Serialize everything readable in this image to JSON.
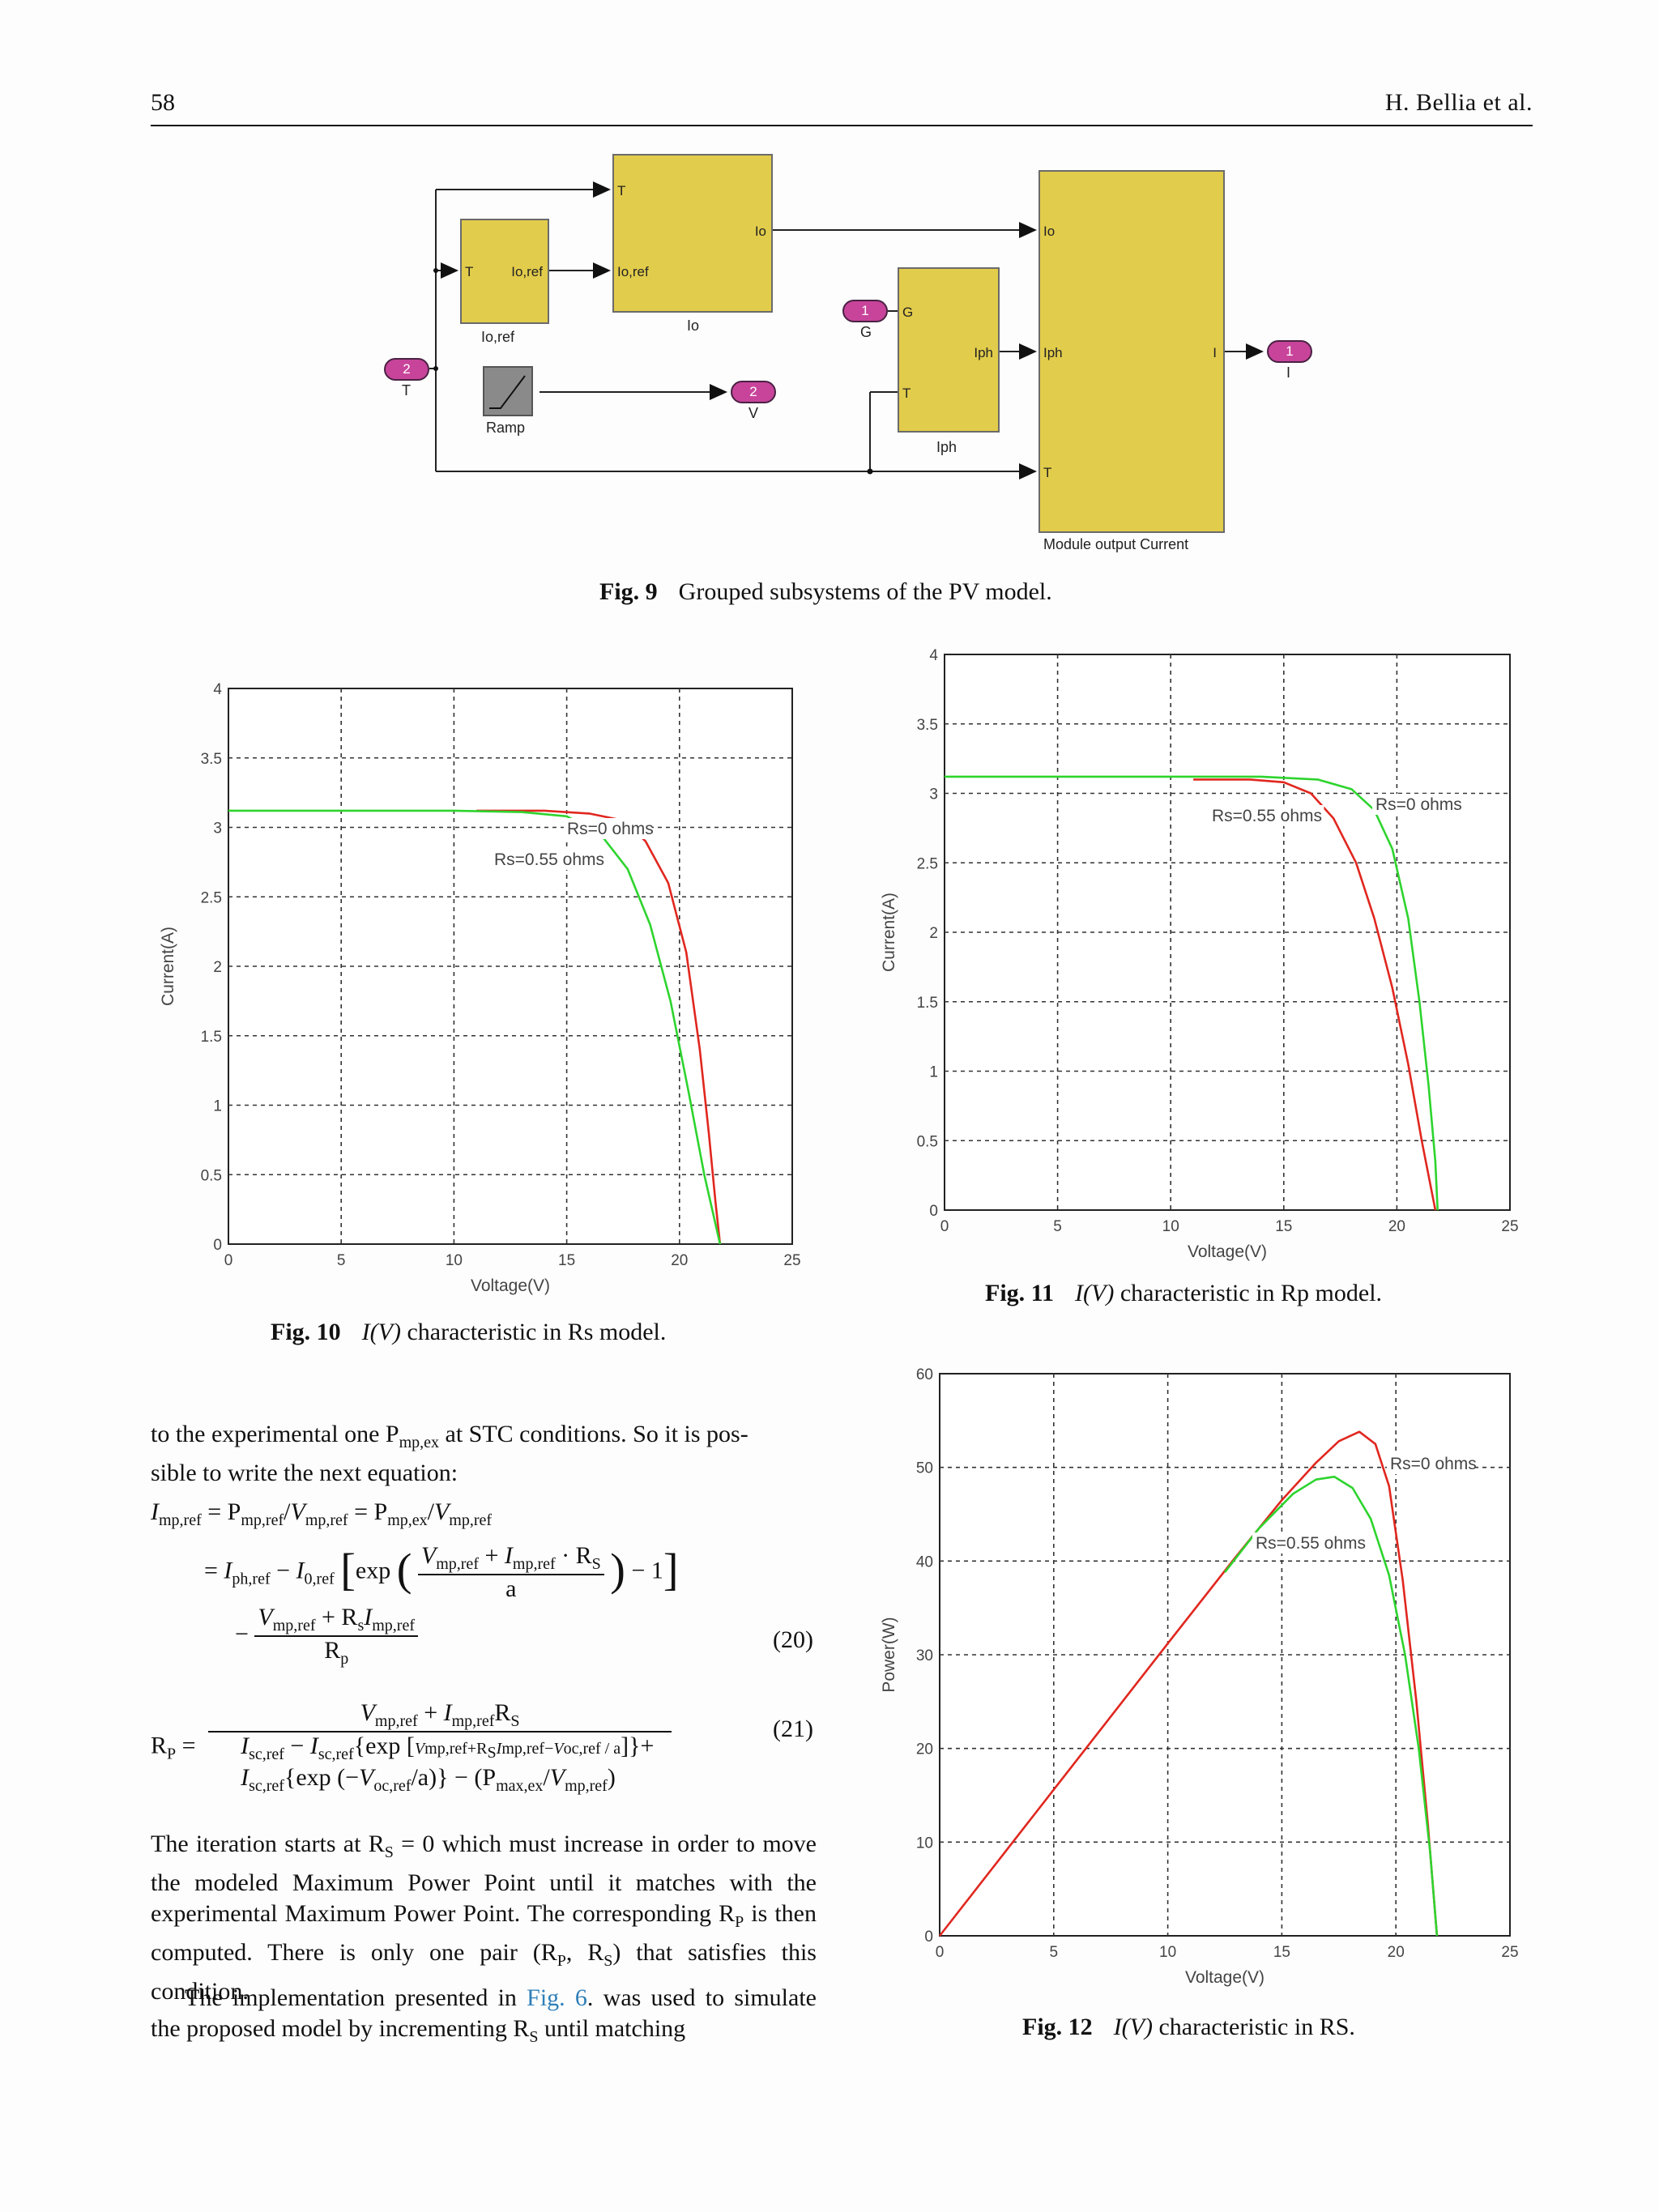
{
  "header": {
    "page_number": "58",
    "authors": "H. Bellia et al."
  },
  "fig9": {
    "label": "Fig. 9",
    "caption": "Grouped subsystems of the PV model.",
    "blocks": {
      "io_ref": {
        "in": "T",
        "out": "Io,ref",
        "name": "Io,ref"
      },
      "io": {
        "in1": "T",
        "in2": "Io,ref",
        "out": "Io",
        "name": "Io"
      },
      "iph": {
        "in1": "G",
        "in2": "T",
        "out": "Iph",
        "name": "Iph"
      },
      "module": {
        "in1": "Io",
        "in2": "Iph",
        "in3": "T",
        "out": "I",
        "name": "Module output Current"
      },
      "ramp": {
        "name": "Ramp"
      }
    },
    "ports": {
      "in_T": {
        "num": "2",
        "label": "T"
      },
      "in_G": {
        "num": "1",
        "label": "G"
      },
      "out_V": {
        "num": "2",
        "label": "V"
      },
      "out_I": {
        "num": "1",
        "label": "I"
      }
    }
  },
  "fig10": {
    "label": "Fig. 10",
    "caption_italic": "I(V)",
    "caption_rest": "characteristic in Rs model."
  },
  "fig11": {
    "label": "Fig. 11",
    "caption_italic": "I(V)",
    "caption_rest": "characteristic in Rp model."
  },
  "fig12": {
    "label": "Fig. 12",
    "caption_italic": "I(V)",
    "caption_rest": "characteristic in RS."
  },
  "text": {
    "para1_line1": "to the experimental one P",
    "para1_sub": "mp,ex",
    "para1_rest": " at STC conditions. So it is pos-",
    "para1_line2": "sible to write the next equation:",
    "eq20_num": "(20)",
    "eq21_num": "(21)",
    "para2": "The iteration starts at R",
    "para2_b": "S",
    "para2_c": " = 0 which must increase in order to move the modeled Maximum Power Point until it matches with the experimental Maximum Power Point. The corresponding R",
    "para2_d": "P",
    "para2_e": " is then computed. There is only one pair (R",
    "para2_f": "P",
    "para2_g": ", R",
    "para2_h": "S",
    "para2_i": ") that satisfies this condition.",
    "para3_a": "The implementation presented in ",
    "para3_link": "Fig. 6",
    "para3_b": ". was used to simulate the proposed model by incrementing R",
    "para3_c": "S",
    "para3_d": " until matching"
  },
  "chart_data": [
    {
      "id": "fig10",
      "type": "line",
      "xlabel": "Voltage(V)",
      "ylabel": "Current(A)",
      "xlim": [
        0,
        25
      ],
      "ylim": [
        0,
        4
      ],
      "xticks": [
        "0",
        "5",
        "10",
        "15",
        "20",
        "25"
      ],
      "yticks": [
        "0",
        "0.5",
        "1",
        "1.5",
        "2",
        "2.5",
        "3",
        "3.5",
        "4"
      ],
      "grid": true,
      "annotations": [
        "Rs=0 ohms",
        "Rs=0.55 ohms"
      ],
      "series": [
        {
          "name": "Rs=0 ohms",
          "color": "#e0271f",
          "points": [
            [
              11,
              3.12
            ],
            [
              14,
              3.12
            ],
            [
              16,
              3.1
            ],
            [
              17.5,
              3.05
            ],
            [
              18.5,
              2.9
            ],
            [
              19.5,
              2.6
            ],
            [
              20.3,
              2.1
            ],
            [
              20.9,
              1.4
            ],
            [
              21.3,
              0.8
            ],
            [
              21.6,
              0.3
            ],
            [
              21.8,
              0
            ]
          ]
        },
        {
          "name": "Rs=0.55 ohms",
          "color": "#2ed42e",
          "points": [
            [
              0,
              3.12
            ],
            [
              10,
              3.12
            ],
            [
              13,
              3.11
            ],
            [
              15,
              3.08
            ],
            [
              16.5,
              2.95
            ],
            [
              17.7,
              2.7
            ],
            [
              18.7,
              2.3
            ],
            [
              19.6,
              1.75
            ],
            [
              20.4,
              1.1
            ],
            [
              21.1,
              0.5
            ],
            [
              21.8,
              0
            ]
          ]
        }
      ]
    },
    {
      "id": "fig11",
      "type": "line",
      "xlabel": "Voltage(V)",
      "ylabel": "Current(A)",
      "xlim": [
        0,
        25
      ],
      "ylim": [
        0,
        4
      ],
      "xticks": [
        "0",
        "5",
        "10",
        "15",
        "20",
        "25"
      ],
      "yticks": [
        "0",
        "0.5",
        "1",
        "1.5",
        "2",
        "2.5",
        "3",
        "3.5",
        "4"
      ],
      "grid": true,
      "annotations": [
        "Rs=0.55 ohms",
        "Rs=0 ohms"
      ],
      "series": [
        {
          "name": "Rs=0 ohms",
          "color": "#2ed42e",
          "points": [
            [
              0,
              3.12
            ],
            [
              10,
              3.12
            ],
            [
              14,
              3.12
            ],
            [
              16.5,
              3.1
            ],
            [
              18,
              3.03
            ],
            [
              19,
              2.88
            ],
            [
              19.8,
              2.6
            ],
            [
              20.5,
              2.1
            ],
            [
              21,
              1.5
            ],
            [
              21.4,
              0.9
            ],
            [
              21.7,
              0.35
            ],
            [
              21.8,
              0
            ]
          ]
        },
        {
          "name": "Rs=0.55 ohms",
          "color": "#e0271f",
          "points": [
            [
              11,
              3.1
            ],
            [
              13.5,
              3.1
            ],
            [
              15,
              3.08
            ],
            [
              16.2,
              3.0
            ],
            [
              17.2,
              2.82
            ],
            [
              18.2,
              2.5
            ],
            [
              19,
              2.1
            ],
            [
              19.8,
              1.6
            ],
            [
              20.5,
              1.05
            ],
            [
              21.1,
              0.5
            ],
            [
              21.7,
              0
            ]
          ]
        }
      ]
    },
    {
      "id": "fig12",
      "type": "line",
      "xlabel": "Voltage(V)",
      "ylabel": "Power(W)",
      "xlim": [
        0,
        25
      ],
      "ylim": [
        0,
        60
      ],
      "xticks": [
        "0",
        "5",
        "10",
        "15",
        "20",
        "25"
      ],
      "yticks": [
        "0",
        "10",
        "20",
        "30",
        "40",
        "50",
        "60"
      ],
      "grid": true,
      "annotations": [
        "Rs=0 ohms",
        "Rs=0.55 ohms"
      ],
      "series": [
        {
          "name": "Rs=0 ohms",
          "color": "#e0271f",
          "points": [
            [
              0,
              0
            ],
            [
              5,
              15.6
            ],
            [
              10,
              31.2
            ],
            [
              13,
              40.5
            ],
            [
              15,
              46.5
            ],
            [
              16.5,
              50.5
            ],
            [
              17.5,
              52.8
            ],
            [
              18.4,
              53.8
            ],
            [
              19.1,
              52.5
            ],
            [
              19.7,
              48
            ],
            [
              20.3,
              38
            ],
            [
              20.9,
              25
            ],
            [
              21.4,
              12
            ],
            [
              21.8,
              0
            ]
          ]
        },
        {
          "name": "Rs=0.55 ohms",
          "color": "#2ed42e",
          "points": [
            [
              12.5,
              38.8
            ],
            [
              14,
              43.5
            ],
            [
              15.5,
              47.2
            ],
            [
              16.5,
              48.7
            ],
            [
              17.3,
              49
            ],
            [
              18.1,
              47.8
            ],
            [
              18.9,
              44.5
            ],
            [
              19.7,
              38.5
            ],
            [
              20.4,
              30
            ],
            [
              21,
              20
            ],
            [
              21.5,
              9
            ],
            [
              21.8,
              0
            ]
          ]
        }
      ]
    }
  ]
}
